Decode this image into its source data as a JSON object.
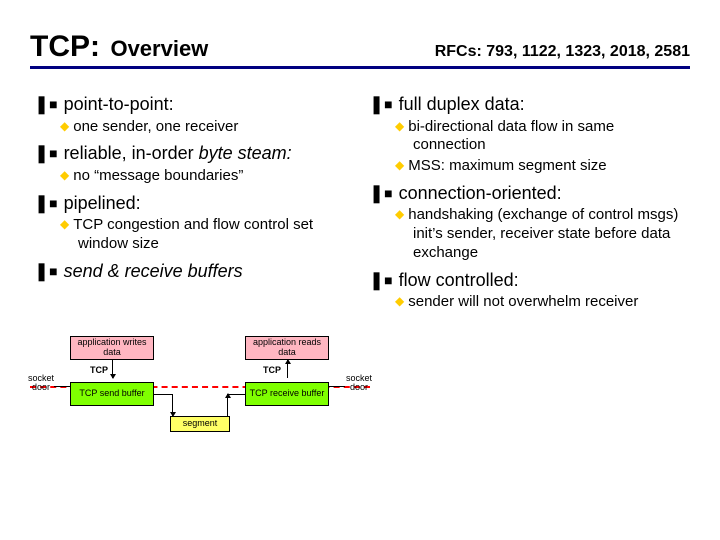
{
  "title": {
    "main": "TCP:",
    "sub": "Overview"
  },
  "rfcs": "RFCs: 793, 1122, 1323, 2018, 2581",
  "colors": {
    "rule": "#000080",
    "l2_marker": "#ffcc00",
    "dash": "#ff0000",
    "pink": "#ffb6c1",
    "green": "#7fff00",
    "yellow": "#ffff66"
  },
  "left": [
    {
      "level": 1,
      "text": "point-to-point:"
    },
    {
      "level": 2,
      "text": "one sender, one receiver"
    },
    {
      "level": 1,
      "html": "reliable, in-order <span class=\"italic\">byte steam:</span>"
    },
    {
      "level": 2,
      "text": "no “message boundaries”"
    },
    {
      "level": 1,
      "text": "pipelined:"
    },
    {
      "level": 2,
      "text": "TCP congestion and flow control set window size"
    },
    {
      "level": 1,
      "html": "<span class=\"italic\">send & receive buffers</span>"
    }
  ],
  "right": [
    {
      "level": 1,
      "text": "full duplex data:"
    },
    {
      "level": 2,
      "text": "bi-directional data flow in same connection"
    },
    {
      "level": 2,
      "text": "MSS: maximum segment size"
    },
    {
      "level": 1,
      "text": "connection-oriented:"
    },
    {
      "level": 2,
      "text": "handshaking (exchange of control msgs) init’s sender, receiver state before data exchange"
    },
    {
      "level": 1,
      "text": "flow controlled:"
    },
    {
      "level": 2,
      "text": "sender will not overwhelm receiver"
    }
  ],
  "diagram": {
    "side_left": "socket\ndoor",
    "side_right": "socket\ndoor",
    "app_write": "application\nwrites data",
    "app_read": "application\nreads data",
    "send_buf": "TCP\nsend buffer",
    "recv_buf": "TCP\nreceive buffer",
    "segment": "segment",
    "tcp_left": "TCP",
    "tcp_right": "TCP"
  }
}
